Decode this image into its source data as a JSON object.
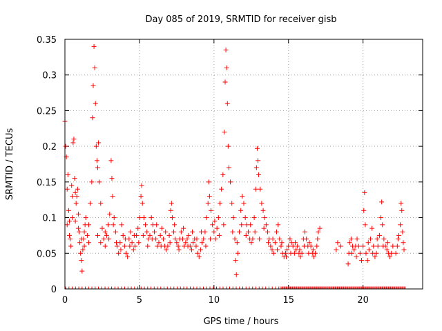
{
  "chart_data": {
    "type": "scatter",
    "title": "Day 085 of 2019, SRMTID for receiver gisb",
    "xlabel": "GPS time / hours",
    "ylabel": "SRMTID / TECUs",
    "xlim": [
      0,
      24
    ],
    "ylim": [
      0,
      0.35
    ],
    "x_ticks": [
      0,
      5,
      10,
      15,
      20
    ],
    "x_tick_labels": [
      "0",
      "5",
      "10",
      "15",
      "20"
    ],
    "y_ticks": [
      0,
      0.05,
      0.1,
      0.15,
      0.2,
      0.25,
      0.3,
      0.35
    ],
    "y_tick_labels": [
      "0",
      "0.05",
      "0.1",
      "0.15",
      "0.2",
      "0.25",
      "0.3",
      "0.35"
    ],
    "grid": true,
    "marker": "plus",
    "color": "#ff0000",
    "series": [
      {
        "points": [
          [
            0.0,
            0.235
          ],
          [
            0.05,
            0.2
          ],
          [
            0.1,
            0.185
          ],
          [
            0.15,
            0.14
          ],
          [
            0.2,
            0.16
          ],
          [
            0.25,
            0.11
          ],
          [
            0.3,
            0.095
          ],
          [
            0.35,
            0.07
          ],
          [
            0.4,
            0.06
          ],
          [
            0.45,
            0.145
          ],
          [
            0.5,
            0.13
          ],
          [
            0.55,
            0.205
          ],
          [
            0.6,
            0.21
          ],
          [
            0.65,
            0.155
          ],
          [
            0.7,
            0.135
          ],
          [
            0.75,
            0.12
          ],
          [
            0.8,
            0.13
          ],
          [
            0.85,
            0.14
          ],
          [
            0.9,
            0.105
          ],
          [
            0.95,
            0.08
          ],
          [
            1.0,
            0.065
          ],
          [
            1.05,
            0.05
          ],
          [
            1.1,
            0.04
          ],
          [
            1.15,
            0.025
          ],
          [
            1.2,
            0.055
          ],
          [
            1.25,
            0.07
          ],
          [
            1.3,
            0.06
          ],
          [
            1.35,
            0.09
          ],
          [
            1.4,
            0.1
          ],
          [
            1.5,
            0.075
          ],
          [
            1.6,
            0.09
          ],
          [
            1.7,
            0.12
          ],
          [
            1.8,
            0.15
          ],
          [
            1.85,
            0.24
          ],
          [
            1.9,
            0.285
          ],
          [
            1.95,
            0.34
          ],
          [
            2.0,
            0.31
          ],
          [
            2.05,
            0.26
          ],
          [
            2.1,
            0.2
          ],
          [
            2.15,
            0.18
          ],
          [
            2.2,
            0.17
          ],
          [
            2.25,
            0.205
          ],
          [
            2.3,
            0.15
          ],
          [
            2.4,
            0.12
          ],
          [
            2.5,
            0.085
          ],
          [
            2.6,
            0.07
          ],
          [
            2.7,
            0.06
          ],
          [
            2.8,
            0.075
          ],
          [
            2.9,
            0.09
          ],
          [
            3.0,
            0.105
          ],
          [
            3.1,
            0.18
          ],
          [
            3.15,
            0.155
          ],
          [
            3.2,
            0.13
          ],
          [
            3.3,
            0.1
          ],
          [
            3.4,
            0.08
          ],
          [
            3.5,
            0.06
          ],
          [
            3.6,
            0.05
          ],
          [
            3.7,
            0.065
          ],
          [
            3.8,
            0.09
          ],
          [
            3.9,
            0.075
          ],
          [
            4.0,
            0.06
          ],
          [
            4.1,
            0.05
          ],
          [
            4.2,
            0.045
          ],
          [
            4.3,
            0.07
          ],
          [
            4.4,
            0.08
          ],
          [
            4.5,
            0.065
          ],
          [
            4.6,
            0.055
          ],
          [
            4.7,
            0.06
          ],
          [
            4.8,
            0.075
          ],
          [
            4.9,
            0.085
          ],
          [
            5.0,
            0.1
          ],
          [
            5.1,
            0.13
          ],
          [
            5.15,
            0.145
          ],
          [
            5.2,
            0.12
          ],
          [
            5.3,
            0.1
          ],
          [
            5.4,
            0.09
          ],
          [
            5.5,
            0.08
          ],
          [
            5.6,
            0.07
          ],
          [
            5.7,
            0.075
          ],
          [
            5.8,
            0.1
          ],
          [
            5.9,
            0.09
          ],
          [
            6.0,
            0.08
          ],
          [
            6.1,
            0.07
          ],
          [
            6.2,
            0.06
          ],
          [
            6.3,
            0.065
          ],
          [
            6.4,
            0.075
          ],
          [
            6.5,
            0.085
          ],
          [
            6.6,
            0.07
          ],
          [
            6.7,
            0.06
          ],
          [
            6.8,
            0.055
          ],
          [
            6.9,
            0.06
          ],
          [
            7.0,
            0.075
          ],
          [
            7.1,
            0.11
          ],
          [
            7.15,
            0.12
          ],
          [
            7.2,
            0.1
          ],
          [
            7.3,
            0.08
          ],
          [
            7.4,
            0.07
          ],
          [
            7.5,
            0.065
          ],
          [
            7.6,
            0.06
          ],
          [
            7.7,
            0.07
          ],
          [
            7.8,
            0.08
          ],
          [
            7.9,
            0.07
          ],
          [
            8.0,
            0.06
          ],
          [
            8.1,
            0.065
          ],
          [
            8.2,
            0.07
          ],
          [
            8.3,
            0.075
          ],
          [
            8.4,
            0.06
          ],
          [
            8.5,
            0.055
          ],
          [
            8.6,
            0.065
          ],
          [
            8.7,
            0.07
          ],
          [
            8.8,
            0.06
          ],
          [
            8.9,
            0.05
          ],
          [
            9.0,
            0.045
          ],
          [
            9.1,
            0.055
          ],
          [
            9.2,
            0.065
          ],
          [
            9.3,
            0.07
          ],
          [
            9.4,
            0.08
          ],
          [
            9.5,
            0.1
          ],
          [
            9.6,
            0.12
          ],
          [
            9.65,
            0.15
          ],
          [
            9.7,
            0.13
          ],
          [
            9.8,
            0.11
          ],
          [
            9.9,
            0.09
          ],
          [
            10.0,
            0.08
          ],
          [
            10.1,
            0.07
          ],
          [
            10.2,
            0.085
          ],
          [
            10.3,
            0.1
          ],
          [
            10.4,
            0.12
          ],
          [
            10.5,
            0.14
          ],
          [
            10.6,
            0.16
          ],
          [
            10.7,
            0.22
          ],
          [
            10.75,
            0.29
          ],
          [
            10.8,
            0.335
          ],
          [
            10.85,
            0.31
          ],
          [
            10.9,
            0.26
          ],
          [
            10.95,
            0.2
          ],
          [
            11.0,
            0.17
          ],
          [
            11.1,
            0.15
          ],
          [
            11.2,
            0.12
          ],
          [
            11.3,
            0.1
          ],
          [
            11.4,
            0.07
          ],
          [
            11.45,
            0.04
          ],
          [
            11.5,
            0.02
          ],
          [
            11.6,
            0.05
          ],
          [
            11.7,
            0.08
          ],
          [
            11.8,
            0.11
          ],
          [
            11.9,
            0.13
          ],
          [
            12.0,
            0.12
          ],
          [
            12.1,
            0.1
          ],
          [
            12.2,
            0.09
          ],
          [
            12.3,
            0.08
          ],
          [
            12.4,
            0.07
          ],
          [
            12.5,
            0.065
          ],
          [
            12.6,
            0.07
          ],
          [
            12.7,
            0.1
          ],
          [
            12.8,
            0.14
          ],
          [
            12.85,
            0.17
          ],
          [
            12.9,
            0.197
          ],
          [
            12.95,
            0.18
          ],
          [
            13.0,
            0.16
          ],
          [
            13.1,
            0.14
          ],
          [
            13.2,
            0.12
          ],
          [
            13.3,
            0.11
          ],
          [
            13.4,
            0.1
          ],
          [
            13.5,
            0.09
          ],
          [
            13.6,
            0.08
          ],
          [
            13.7,
            0.07
          ],
          [
            13.8,
            0.06
          ],
          [
            13.9,
            0.055
          ],
          [
            14.0,
            0.05
          ],
          [
            14.1,
            0.065
          ],
          [
            14.2,
            0.08
          ],
          [
            14.3,
            0.09
          ],
          [
            14.4,
            0.07
          ],
          [
            14.5,
            0.06
          ],
          [
            14.6,
            0.05
          ],
          [
            14.7,
            0.045
          ],
          [
            14.8,
            0.05
          ],
          [
            14.9,
            0.055
          ],
          [
            15.0,
            0.06
          ],
          [
            15.1,
            0.07
          ],
          [
            15.2,
            0.065
          ],
          [
            15.3,
            0.06
          ],
          [
            15.4,
            0.05
          ],
          [
            15.5,
            0.055
          ],
          [
            15.6,
            0.06
          ],
          [
            15.7,
            0.05
          ],
          [
            15.8,
            0.045
          ],
          [
            15.9,
            0.05
          ],
          [
            16.0,
            0.07
          ],
          [
            16.1,
            0.08
          ],
          [
            16.2,
            0.07
          ],
          [
            16.3,
            0.06
          ],
          [
            16.4,
            0.065
          ],
          [
            16.5,
            0.06
          ],
          [
            16.6,
            0.05
          ],
          [
            16.7,
            0.045
          ],
          [
            16.8,
            0.05
          ],
          [
            16.9,
            0.06
          ],
          [
            17.0,
            0.08
          ],
          [
            17.1,
            0.085
          ],
          [
            18.2,
            0.055
          ],
          [
            18.3,
            0.065
          ],
          [
            18.5,
            0.06
          ],
          [
            19.0,
            0.035
          ],
          [
            19.05,
            0.05
          ],
          [
            19.1,
            0.065
          ],
          [
            19.2,
            0.07
          ],
          [
            19.3,
            0.06
          ],
          [
            19.4,
            0.055
          ],
          [
            19.5,
            0.06
          ],
          [
            19.6,
            0.07
          ],
          [
            19.7,
            0.06
          ],
          [
            19.8,
            0.05
          ],
          [
            19.9,
            0.04
          ],
          [
            20.0,
            0.06
          ],
          [
            20.05,
            0.11
          ],
          [
            20.1,
            0.135
          ],
          [
            20.15,
            0.09
          ],
          [
            20.2,
            0.05
          ],
          [
            20.3,
            0.04
          ],
          [
            20.4,
            0.055
          ],
          [
            20.5,
            0.07
          ],
          [
            20.6,
            0.085
          ],
          [
            20.7,
            0.06
          ],
          [
            20.8,
            0.045
          ],
          [
            20.9,
            0.05
          ],
          [
            21.0,
            0.06
          ],
          [
            21.1,
            0.075
          ],
          [
            21.2,
            0.1
          ],
          [
            21.25,
            0.122
          ],
          [
            21.3,
            0.09
          ],
          [
            21.4,
            0.07
          ],
          [
            21.5,
            0.06
          ],
          [
            21.6,
            0.055
          ],
          [
            21.7,
            0.05
          ],
          [
            21.8,
            0.045
          ],
          [
            21.9,
            0.05
          ],
          [
            22.0,
            0.06
          ],
          [
            22.2,
            0.05
          ],
          [
            22.3,
            0.06
          ],
          [
            22.4,
            0.075
          ],
          [
            22.5,
            0.09
          ],
          [
            22.55,
            0.12
          ],
          [
            22.6,
            0.11
          ],
          [
            22.65,
            0.08
          ],
          [
            22.7,
            0.065
          ],
          [
            0.15,
            0.09
          ],
          [
            0.3,
            0.075
          ],
          [
            0.5,
            0.1
          ],
          [
            0.7,
            0.095
          ],
          [
            0.9,
            0.085
          ],
          [
            1.1,
            0.07
          ],
          [
            1.3,
            0.08
          ],
          [
            1.6,
            0.065
          ],
          [
            2.2,
            0.075
          ],
          [
            2.4,
            0.065
          ],
          [
            2.7,
            0.08
          ],
          [
            2.95,
            0.07
          ],
          [
            3.25,
            0.09
          ],
          [
            3.45,
            0.065
          ],
          [
            3.75,
            0.055
          ],
          [
            4.05,
            0.07
          ],
          [
            4.35,
            0.06
          ],
          [
            4.65,
            0.075
          ],
          [
            4.95,
            0.065
          ],
          [
            5.25,
            0.075
          ],
          [
            5.55,
            0.06
          ],
          [
            5.85,
            0.07
          ],
          [
            6.15,
            0.09
          ],
          [
            6.45,
            0.06
          ],
          [
            6.75,
            0.08
          ],
          [
            7.05,
            0.065
          ],
          [
            7.35,
            0.09
          ],
          [
            7.65,
            0.055
          ],
          [
            7.95,
            0.085
          ],
          [
            8.25,
            0.06
          ],
          [
            8.55,
            0.08
          ],
          [
            8.85,
            0.07
          ],
          [
            9.15,
            0.08
          ],
          [
            9.45,
            0.06
          ],
          [
            9.75,
            0.07
          ],
          [
            10.05,
            0.095
          ],
          [
            10.35,
            0.075
          ],
          [
            10.65,
            0.09
          ],
          [
            11.25,
            0.08
          ],
          [
            11.55,
            0.065
          ],
          [
            11.85,
            0.09
          ],
          [
            12.15,
            0.075
          ],
          [
            12.45,
            0.09
          ],
          [
            12.75,
            0.08
          ],
          [
            13.05,
            0.07
          ],
          [
            13.35,
            0.085
          ],
          [
            13.65,
            0.065
          ],
          [
            13.95,
            0.07
          ],
          [
            14.25,
            0.055
          ],
          [
            14.55,
            0.065
          ],
          [
            14.85,
            0.045
          ],
          [
            15.15,
            0.05
          ],
          [
            15.45,
            0.065
          ],
          [
            15.75,
            0.055
          ],
          [
            16.05,
            0.06
          ],
          [
            16.35,
            0.05
          ],
          [
            16.65,
            0.055
          ],
          [
            16.95,
            0.07
          ],
          [
            19.25,
            0.05
          ],
          [
            19.55,
            0.045
          ],
          [
            20.35,
            0.065
          ],
          [
            20.65,
            0.05
          ],
          [
            20.95,
            0.07
          ],
          [
            21.35,
            0.06
          ],
          [
            21.65,
            0.065
          ],
          [
            22.35,
            0.07
          ],
          [
            22.75,
            0.055
          ]
        ]
      }
    ],
    "zero_band": [
      [
        0.05,
        14.5
      ],
      [
        14.5,
        22.9
      ]
    ]
  }
}
